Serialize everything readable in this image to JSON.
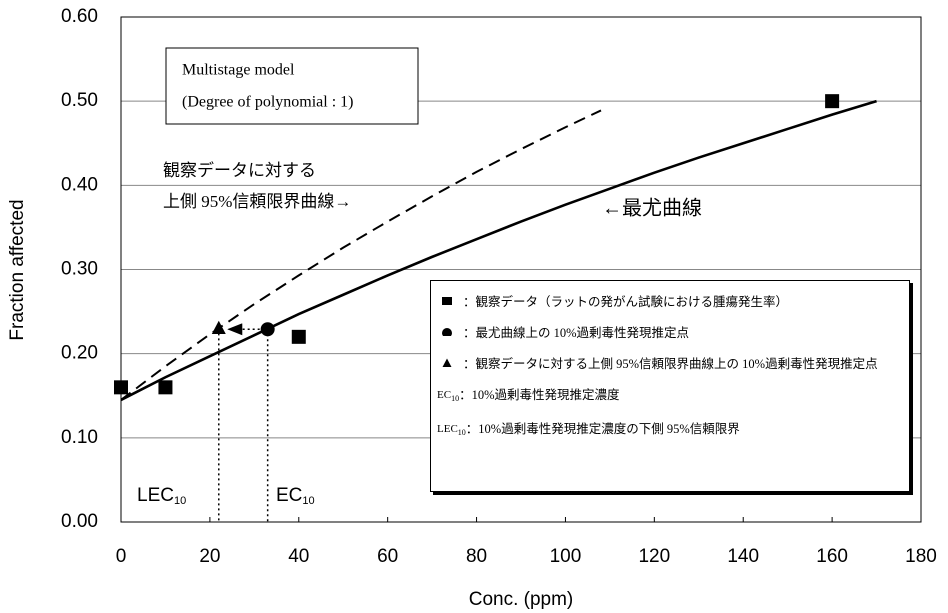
{
  "chart_data": {
    "type": "line",
    "x_label": "Conc. (ppm)",
    "y_label": "Fraction affected",
    "xlim": [
      0,
      180
    ],
    "xticks": [
      0,
      20,
      40,
      60,
      80,
      100,
      120,
      140,
      160,
      180
    ],
    "ylim": [
      0,
      0.6
    ],
    "yticks": [
      {
        "value": 0,
        "label": "0.00"
      },
      {
        "value": 0.1,
        "label": "0.10"
      },
      {
        "value": 0.2,
        "label": "0.20"
      },
      {
        "value": 0.3,
        "label": "0.30"
      },
      {
        "value": 0.4,
        "label": "0.40"
      },
      {
        "value": 0.5,
        "label": "0.50"
      },
      {
        "value": 0.6,
        "label": "0.60"
      }
    ],
    "grid": true,
    "series": [
      {
        "type": "line",
        "color": "#000000",
        "dash": false,
        "x": [
          0,
          10,
          20,
          30,
          40,
          50,
          60,
          70,
          80,
          90,
          100,
          110,
          120,
          130,
          140,
          150,
          160,
          170
        ],
        "values": [
          0.145,
          0.172,
          0.197,
          0.222,
          0.247,
          0.27,
          0.293,
          0.315,
          0.336,
          0.357,
          0.377,
          0.396,
          0.415,
          0.433,
          0.45,
          0.467,
          0.484,
          0.5
        ]
      },
      {
        "type": "line",
        "color": "#000000",
        "dash": true,
        "x": [
          0,
          10,
          20,
          30,
          40,
          50,
          60,
          70,
          80,
          90,
          100,
          108
        ],
        "values": [
          0.145,
          0.185,
          0.223,
          0.259,
          0.293,
          0.326,
          0.357,
          0.387,
          0.416,
          0.443,
          0.469,
          0.489
        ]
      },
      {
        "type": "scatter",
        "marker": "square",
        "color": "#000000",
        "name": "：観察データ（ラットの発がん試験における腫瘍発生率）",
        "x": [
          0,
          10,
          40,
          160
        ],
        "values": [
          0.16,
          0.16,
          0.22,
          0.5
        ]
      },
      {
        "type": "scatter",
        "marker": "circle",
        "color": "#000000",
        "drop_line": true,
        "name": "：最尤曲線上の 10%過剰毒性発現推定点",
        "x": [
          33
        ],
        "values": [
          0.229
        ]
      },
      {
        "type": "scatter",
        "marker": "triangle",
        "color": "#000000",
        "drop_line": true,
        "name": "：観察データに対する上側 95%信頼限界曲線上の 10%過剰毒性発現推定点",
        "x": [
          22
        ],
        "values": [
          0.23
        ]
      }
    ],
    "model_box": [
      "Multistage model",
      "(Degree of polynomial : 1)"
    ],
    "annotations": [
      "観察データに対する",
      "上側 95%信頼限界曲線→",
      "←最尤曲線"
    ],
    "point_labels": [
      {
        "text": "LEC",
        "sub": "10"
      },
      {
        "text": "EC",
        "sub": "10"
      }
    ],
    "legend_notes": [
      {
        "key": "EC",
        "sub": "10",
        "text": "：10%過剰毒性発現推定濃度"
      },
      {
        "key": "LEC",
        "sub": "10",
        "text": "：10%過剰毒性発現推定濃度の下側 95%信頼限界"
      }
    ]
  }
}
